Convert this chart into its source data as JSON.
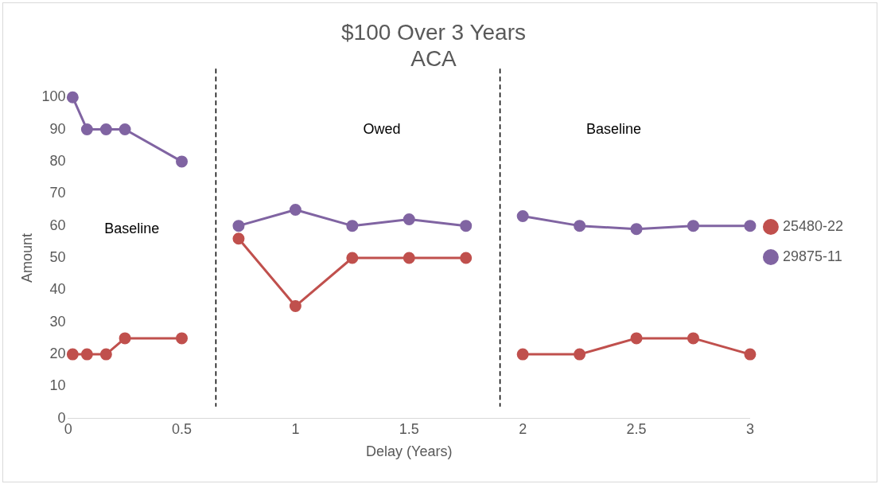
{
  "chart_data": {
    "type": "line",
    "title": "$100 Over 3 Years",
    "subtitle": "ACA",
    "xlabel": "Delay (Years)",
    "ylabel": "Amount",
    "x": [
      0.02,
      0.083,
      0.167,
      0.25,
      0.5,
      0.65,
      0.75,
      1,
      1.25,
      1.5,
      1.75,
      1.9,
      2,
      2.25,
      2.5,
      2.75,
      3
    ],
    "series": [
      {
        "name": "25480-22",
        "color": "#c0504d",
        "values": [
          20,
          20,
          20,
          25,
          25,
          null,
          56,
          35,
          50,
          50,
          50,
          null,
          20,
          20,
          25,
          25,
          20
        ]
      },
      {
        "name": "29875-11",
        "color": "#8064a2",
        "values": [
          100,
          90,
          90,
          90,
          80,
          null,
          60,
          65,
          60,
          62,
          60,
          null,
          63,
          60,
          59,
          60,
          60
        ]
      }
    ],
    "xlim": [
      0,
      3
    ],
    "xticks": [
      0,
      0.5,
      1,
      1.5,
      2,
      2.5,
      3
    ],
    "ylim": [
      0,
      100
    ],
    "yticks": [
      0,
      10,
      20,
      30,
      40,
      50,
      60,
      70,
      80,
      90,
      100
    ],
    "ref_lines": [
      {
        "axis": "x",
        "value": 0.65,
        "color": "#000000",
        "line_style": "dashed"
      },
      {
        "axis": "x",
        "value": 1.9,
        "color": "#000000",
        "line_style": "dashed"
      }
    ],
    "annotations": [
      "Baseline",
      "Owed",
      "Baseline"
    ],
    "grid": false,
    "legend": "right",
    "marker": "circle",
    "line_style": "solid"
  }
}
